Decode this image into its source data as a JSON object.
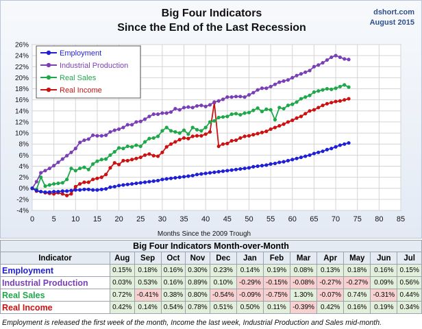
{
  "title": "Big Four Indicators",
  "subtitle": "Since the End of the Last Recession",
  "credit_site": "dshort.com",
  "credit_date": "August 2015",
  "colors": {
    "Employment": "#1f1fd6",
    "Industrial Production": "#7a3fb6",
    "Real Sales": "#1fa84a",
    "Real Income": "#cc1111"
  },
  "chart_data": {
    "type": "line",
    "title": "Big Four Indicators",
    "subtitle": "Since the End of the Last Recession",
    "xlabel": "Months Since the 2009 Trough",
    "ylabel": "",
    "xlim": [
      0,
      85
    ],
    "ylim": [
      -4,
      26
    ],
    "xticks": [
      0,
      5,
      10,
      15,
      20,
      25,
      30,
      35,
      40,
      45,
      50,
      55,
      60,
      65,
      70,
      75,
      80,
      85
    ],
    "yticks": [
      -4,
      -2,
      0,
      2,
      4,
      6,
      8,
      10,
      12,
      14,
      16,
      18,
      20,
      22,
      24,
      26
    ],
    "ytick_labels": [
      "-4%",
      "-2%",
      "0%",
      "2%",
      "4%",
      "6%",
      "8%",
      "10%",
      "12%",
      "14%",
      "16%",
      "18%",
      "20%",
      "22%",
      "24%",
      "26%"
    ],
    "grid": true,
    "legend": "top-left",
    "series": [
      {
        "name": "Employment",
        "x": [
          0,
          1,
          2,
          3,
          4,
          5,
          6,
          7,
          8,
          9,
          10,
          11,
          12,
          13,
          14,
          15,
          16,
          17,
          18,
          19,
          20,
          21,
          22,
          23,
          24,
          25,
          26,
          27,
          28,
          29,
          30,
          31,
          32,
          33,
          34,
          35,
          36,
          37,
          38,
          39,
          40,
          41,
          42,
          43,
          44,
          45,
          46,
          47,
          48,
          49,
          50,
          51,
          52,
          53,
          54,
          55,
          56,
          57,
          58,
          59,
          60,
          61,
          62,
          63,
          64,
          65,
          66,
          67,
          68,
          69,
          70,
          71,
          72,
          73
        ],
        "y": [
          0,
          -0.4,
          -0.6,
          -0.7,
          -0.7,
          -0.6,
          -0.6,
          -0.5,
          -0.5,
          -0.4,
          -0.3,
          -0.3,
          -0.2,
          -0.2,
          -0.3,
          -0.3,
          -0.2,
          -0.1,
          0.2,
          0.3,
          0.5,
          0.6,
          0.7,
          0.8,
          0.9,
          1,
          1.1,
          1.2,
          1.3,
          1.4,
          1.6,
          1.7,
          1.8,
          1.9,
          2,
          2.1,
          2.2,
          2.3,
          2.5,
          2.6,
          2.7,
          2.8,
          2.9,
          3,
          3.1,
          3.2,
          3.3,
          3.4,
          3.5,
          3.6,
          3.7,
          3.9,
          4,
          4.1,
          4.2,
          4.4,
          4.5,
          4.7,
          4.8,
          5,
          5.2,
          5.4,
          5.6,
          5.8,
          6,
          6.3,
          6.5,
          6.7,
          7,
          7.2,
          7.5,
          7.8,
          8,
          8.2
        ]
      },
      {
        "name": "Industrial Production",
        "x": [
          0,
          1,
          2,
          3,
          4,
          5,
          6,
          7,
          8,
          9,
          10,
          11,
          12,
          13,
          14,
          15,
          16,
          17,
          18,
          19,
          20,
          21,
          22,
          23,
          24,
          25,
          26,
          27,
          28,
          29,
          30,
          31,
          32,
          33,
          34,
          35,
          36,
          37,
          38,
          39,
          40,
          41,
          42,
          43,
          44,
          45,
          46,
          47,
          48,
          49,
          50,
          51,
          52,
          53,
          54,
          55,
          56,
          57,
          58,
          59,
          60,
          61,
          62,
          63,
          64,
          65,
          66,
          67,
          68,
          69,
          70,
          71,
          72,
          73
        ],
        "y": [
          0,
          1.2,
          2.8,
          3.2,
          3.6,
          4.1,
          4.7,
          5.3,
          5.9,
          6.5,
          7.2,
          8.3,
          8.7,
          8.9,
          9.6,
          9.5,
          9.5,
          9.6,
          10.2,
          10.5,
          10.7,
          11,
          11.5,
          11.5,
          12,
          12.1,
          12.5,
          13,
          13.4,
          13.4,
          13.6,
          13.6,
          13.8,
          14.4,
          14.2,
          14.6,
          14.7,
          14.6,
          14.9,
          15,
          14.8,
          15.1,
          15.6,
          15.8,
          16.1,
          16.5,
          16.5,
          16.6,
          16.6,
          16.5,
          16.9,
          17.3,
          17.8,
          18.1,
          18.1,
          18.4,
          18.8,
          19.2,
          19.4,
          19.6,
          20,
          20.4,
          20.7,
          21,
          21.3,
          22,
          22.3,
          22.7,
          23.2,
          23.7,
          24,
          23.7,
          23.4,
          23.3
        ]
      },
      {
        "name": "Real Sales",
        "x": [
          0,
          1,
          2,
          3,
          4,
          5,
          6,
          7,
          8,
          9,
          10,
          11,
          12,
          13,
          14,
          15,
          16,
          17,
          18,
          19,
          20,
          21,
          22,
          23,
          24,
          25,
          26,
          27,
          28,
          29,
          30,
          31,
          32,
          33,
          34,
          35,
          36,
          37,
          38,
          39,
          40,
          41,
          42,
          43,
          44,
          45,
          46,
          47,
          48,
          49,
          50,
          51,
          52,
          53,
          54,
          55,
          56,
          57,
          58,
          59,
          60,
          61,
          62,
          63,
          64,
          65,
          66,
          67,
          68,
          69,
          70,
          71,
          72,
          73
        ],
        "y": [
          0,
          -0.2,
          2,
          0.4,
          0.6,
          0.8,
          0.9,
          1,
          1.6,
          3.6,
          3.2,
          3.6,
          3.8,
          3.4,
          4.4,
          4.9,
          5.2,
          5.3,
          6,
          6.6,
          7.3,
          7.2,
          7.6,
          7.5,
          7.8,
          7.6,
          8.4,
          9,
          9.1,
          9.4,
          10.4,
          11,
          10.4,
          10.2,
          10,
          10.5,
          9.8,
          11,
          10.6,
          10.4,
          11,
          12,
          12.2,
          12.8,
          12.9,
          13,
          13.4,
          13.5,
          13.3,
          13.6,
          13.7,
          14.1,
          14.5,
          13.9,
          14.3,
          14.2,
          12.4,
          14.6,
          14.4,
          15,
          15.2,
          15.6,
          16.2,
          16.5,
          16.8,
          17.4,
          17.6,
          17.8,
          18,
          17.9,
          18.1,
          18.4,
          18.7,
          18.3
        ]
      },
      {
        "name": "Real Income",
        "x": [
          0,
          1,
          2,
          3,
          4,
          5,
          6,
          7,
          8,
          9,
          10,
          11,
          12,
          13,
          14,
          15,
          16,
          17,
          18,
          19,
          20,
          21,
          22,
          23,
          24,
          25,
          26,
          27,
          28,
          29,
          30,
          31,
          32,
          33,
          34,
          35,
          36,
          37,
          38,
          39,
          40,
          41,
          42,
          43,
          44,
          45,
          46,
          47,
          48,
          49,
          50,
          51,
          52,
          53,
          54,
          55,
          56,
          57,
          58,
          59,
          60,
          61,
          62,
          63,
          64,
          65,
          66,
          67,
          68,
          69,
          70,
          71,
          72,
          73
        ],
        "y": [
          0,
          -0.5,
          -0.6,
          -0.8,
          -0.9,
          -1,
          -0.8,
          -1,
          -1.3,
          -1,
          0.3,
          0.8,
          1.1,
          1.1,
          1.6,
          1.8,
          2,
          2.5,
          3.7,
          4.6,
          4.3,
          5,
          5,
          5.2,
          5.4,
          5.6,
          6,
          6.2,
          5.9,
          5.8,
          6.5,
          7.5,
          8,
          8.4,
          8.8,
          9.1,
          9,
          9.4,
          9.5,
          9.5,
          9.8,
          10.2,
          15.5,
          7.6,
          8,
          8.1,
          8.6,
          8.7,
          9.1,
          9.4,
          9.5,
          9.7,
          9.9,
          10.1,
          10.3,
          10.7,
          11,
          11.3,
          11.6,
          12,
          12.3,
          12.7,
          13,
          13.5,
          14,
          14.2,
          14.6,
          15,
          15.3,
          15.5,
          15.7,
          15.8,
          16,
          16.2
        ]
      }
    ]
  },
  "table": {
    "caption": "Big Four Indicators Month-over-Month",
    "indicator_header": "Indicator",
    "months": [
      "Aug",
      "Sep",
      "Oct",
      "Nov",
      "Dec",
      "Jan",
      "Feb",
      "Mar",
      "Apr",
      "May",
      "Jun",
      "Jul"
    ],
    "rows": [
      {
        "name": "Employment",
        "color": "#1f1fd6",
        "values": [
          "0.15%",
          "0.18%",
          "0.16%",
          "0.30%",
          "0.23%",
          "0.14%",
          "0.19%",
          "0.08%",
          "0.13%",
          "0.18%",
          "0.16%",
          "0.15%"
        ]
      },
      {
        "name": "Industrial Production",
        "color": "#7a3fb6",
        "values": [
          "0.03%",
          "0.53%",
          "0.16%",
          "0.89%",
          "0.10%",
          "-0.29%",
          "-0.15%",
          "-0.08%",
          "-0.27%",
          "-0.27%",
          "0.09%",
          "0.56%"
        ]
      },
      {
        "name": "Real Sales",
        "color": "#1fa84a",
        "values": [
          "0.72%",
          "-0.41%",
          "0.38%",
          "0.80%",
          "-0.54%",
          "-0.09%",
          "-0.75%",
          "1.30%",
          "-0.07%",
          "0.74%",
          "-0.31%",
          "0.44%"
        ]
      },
      {
        "name": "Real Income",
        "color": "#cc1111",
        "values": [
          "0.42%",
          "0.14%",
          "0.54%",
          "0.78%",
          "0.51%",
          "0.50%",
          "0.11%",
          "-0.39%",
          "0.42%",
          "0.16%",
          "0.19%",
          "0.34%"
        ]
      }
    ]
  },
  "footnote": "Employment is released the first week of the month, Income the last week, Industrial Production and Sales mid-month."
}
